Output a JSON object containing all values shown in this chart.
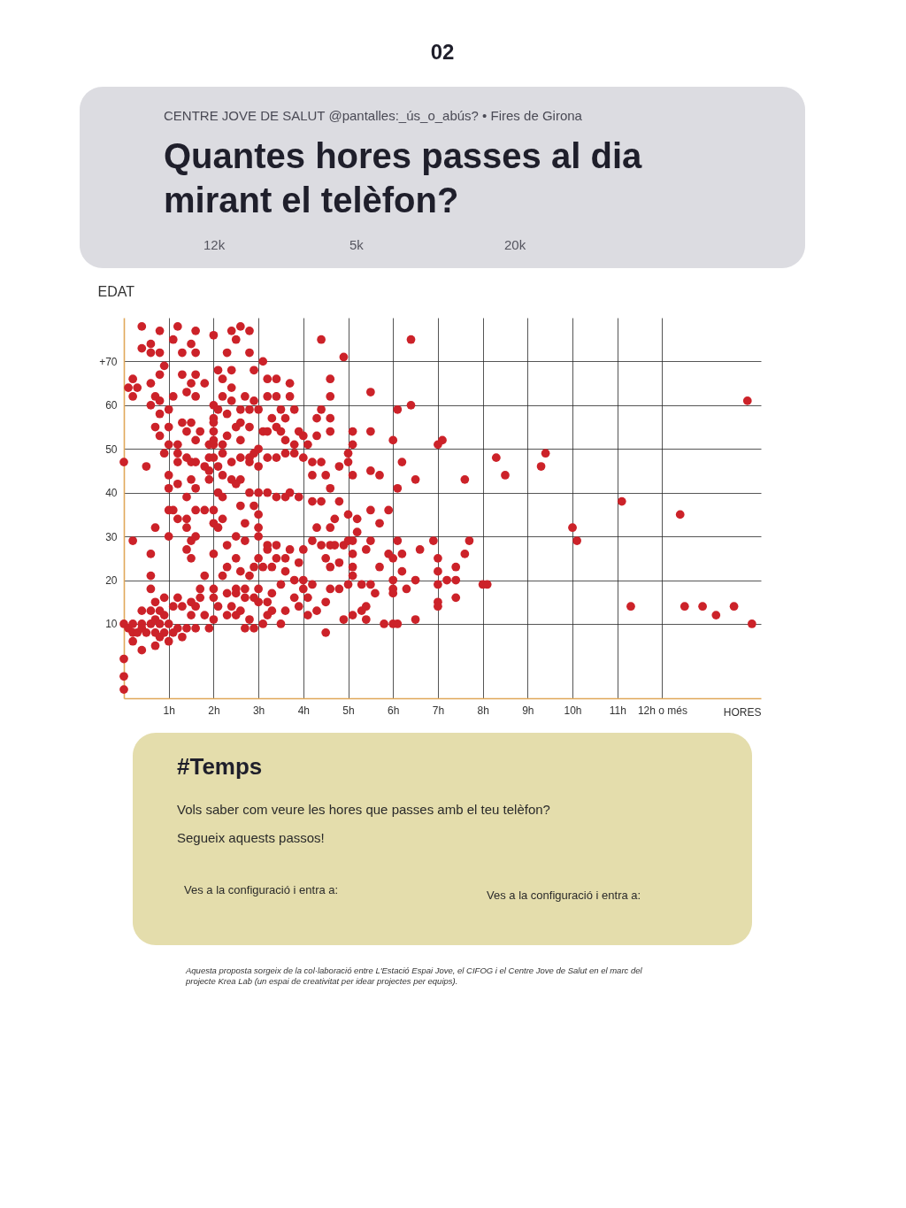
{
  "chart_data": {
    "type": "scatter",
    "title": "Quantes hores passes al dia mirant el telèfon?",
    "subtitle": "CENTRE JOVE DE SALUT @pantalles:_ús_o_abús? • Fires de Girona",
    "xlabel": "HORES",
    "ylabel": "EDAT",
    "series": [
      {
        "color": "#cc2229",
        "x": [
          13.9,
          7.1,
          7.0,
          8.3,
          8.5,
          9.4,
          9.3,
          7.6,
          11.1,
          12.4,
          10.0,
          10.1,
          6.9,
          7.7,
          7.6,
          7.0,
          7.4,
          7.0,
          7.2,
          7.4,
          7.0,
          8.0,
          8.1,
          7.4,
          7.0,
          7.0,
          11.3,
          12.5,
          12.9,
          13.2,
          13.6,
          14.0,
          0.0,
          0.1,
          0.2,
          0.2,
          0.3,
          0.4,
          0.4,
          0.5,
          0.6,
          0.7,
          0.7,
          0.8,
          0.9,
          0.9,
          1.0,
          1.1,
          1.2,
          1.3,
          0.2,
          0.4,
          0.7,
          0.8,
          1.0,
          0.4,
          0.6,
          0.8,
          1.1,
          1.3,
          0.7,
          0.9,
          0.6,
          0.6,
          0.6,
          0.7,
          0.2,
          0.0,
          0.0,
          0.0,
          1.0,
          1.1,
          1.2,
          1.4,
          1.6,
          1.8,
          2.0,
          1.0,
          1.4,
          1.5,
          1.6,
          1.4,
          1.5,
          1.8,
          2.2,
          2.0,
          2.0,
          2.1,
          2.2,
          2.3,
          2.3,
          2.6,
          2.7,
          2.5,
          2.7,
          2.5,
          2.6,
          2.8,
          2.9,
          3.0,
          3.0,
          3.0,
          3.2,
          3.4,
          3.0,
          3.2,
          3.4,
          2.9,
          3.1,
          3.3,
          3.6,
          3.8,
          4.0,
          3.5,
          3.7,
          3.9,
          3.6,
          4.0,
          4.2,
          4.4,
          4.6,
          4.7,
          4.9,
          5.0,
          5.1,
          4.3,
          4.6,
          4.7,
          5.0,
          5.2,
          5.5,
          5.9,
          5.7,
          5.2,
          5.5,
          5.4,
          5.1,
          5.7,
          5.1,
          5.1,
          4.8,
          4.5,
          4.6,
          5.9,
          6.2,
          6.6,
          6.0,
          6.2,
          6.1,
          6.5,
          6.0,
          6.0,
          6.0,
          6.3,
          5.5,
          5.3,
          5.6,
          5.0,
          4.8,
          4.6,
          4.2,
          4.0,
          4.1,
          4.5,
          4.3,
          3.9,
          4.1,
          3.8,
          3.6,
          3.3,
          3.2,
          3.1,
          3.5,
          3.0,
          2.9,
          3.0,
          3.3,
          3.2,
          2.7,
          2.7,
          2.8,
          2.7,
          2.9,
          2.4,
          2.5,
          2.6,
          2.3,
          2.5,
          2.5,
          2.3,
          2.0,
          2.0,
          2.1,
          2.0,
          1.8,
          1.9,
          1.7,
          1.7,
          1.6,
          1.5,
          1.5,
          1.4,
          1.6,
          1.2,
          6.0,
          6.1,
          5.8,
          6.5,
          5.4,
          5.3,
          5.1,
          4.9,
          4.5,
          5.4,
          0.4,
          0.8,
          0.6,
          0.4,
          0.6,
          0.8,
          1.2,
          1.1,
          1.5,
          1.6,
          1.3,
          1.6,
          2.0,
          2.4,
          2.6,
          2.8,
          2.5,
          2.3,
          2.8,
          3.1,
          4.4,
          4.9,
          6.4,
          0.9,
          0.8,
          0.2,
          0.1,
          0.3,
          0.2,
          0.6,
          0.7,
          0.6,
          0.8,
          1.0,
          0.8,
          1.1,
          1.3,
          1.6,
          1.5,
          1.4,
          1.6,
          1.8,
          2.1,
          2.4,
          2.2,
          2.4,
          2.2,
          2.4,
          2.7,
          2.9,
          2.9,
          2.0,
          3.2,
          3.4,
          3.7,
          3.2,
          3.4,
          3.7,
          4.6,
          4.6,
          5.5,
          6.1,
          6.4,
          0.7,
          1.0,
          0.8,
          1.0,
          0.9,
          0.5,
          0.0,
          1.3,
          1.5,
          1.4,
          1.7,
          1.6,
          1.2,
          1.2,
          1.4,
          1.6,
          1.2,
          1.0,
          1.0,
          1.2,
          1.4,
          1.9,
          2.0,
          2.2,
          2.0,
          2.0,
          2.0,
          2.0,
          2.1,
          2.3,
          2.6,
          2.8,
          3.0,
          2.6,
          2.8,
          2.5,
          2.3,
          2.6,
          1.9,
          2.0,
          2.2,
          2.4,
          2.6,
          2.8,
          2.9,
          3.0,
          1.5,
          1.8,
          1.9,
          2.1,
          2.2,
          2.4,
          2.6,
          2.8,
          3.0,
          3.2,
          3.4,
          3.6,
          3.8,
          4.0,
          1.5,
          1.6,
          1.9,
          2.1,
          2.2,
          2.5,
          2.8,
          3.0,
          3.2,
          3.4,
          3.6,
          3.7,
          3.9,
          4.2,
          4.4,
          4.8,
          3.1,
          3.2,
          3.4,
          3.5,
          3.6,
          3.8,
          3.9,
          4.0,
          4.1,
          3.3,
          3.5,
          3.6,
          3.8,
          4.3,
          4.4,
          4.6,
          4.3,
          4.6,
          4.2,
          4.4,
          4.5,
          4.2,
          4.6,
          4.8,
          5.0,
          5.0,
          5.1,
          5.1,
          5.1,
          5.5,
          5.5,
          5.7,
          6.0,
          6.2,
          6.1,
          6.5
        ],
        "values": [
          61,
          52,
          51,
          48,
          44,
          49,
          46,
          43,
          38,
          35,
          32,
          29,
          29,
          29,
          26,
          25,
          23,
          22,
          20,
          20,
          19,
          19,
          19,
          16,
          15,
          14,
          14,
          14,
          14,
          12,
          14,
          10,
          10,
          9,
          8,
          10,
          8,
          10,
          9,
          8,
          10,
          8,
          11,
          10,
          8,
          12,
          10,
          8,
          9,
          7,
          6,
          4,
          5,
          7,
          6,
          13,
          13,
          13,
          14,
          14,
          15,
          16,
          18,
          21,
          26,
          32,
          29,
          2,
          -2,
          -5,
          36,
          36,
          34,
          34,
          36,
          36,
          36,
          30,
          32,
          29,
          30,
          27,
          25,
          21,
          21,
          26,
          33,
          32,
          34,
          28,
          23,
          37,
          33,
          30,
          29,
          25,
          22,
          21,
          37,
          35,
          32,
          30,
          28,
          28,
          25,
          27,
          25,
          23,
          23,
          23,
          22,
          20,
          20,
          19,
          27,
          24,
          25,
          27,
          29,
          28,
          28,
          28,
          28,
          29,
          29,
          32,
          32,
          34,
          35,
          34,
          36,
          36,
          33,
          31,
          29,
          27,
          26,
          23,
          23,
          21,
          24,
          25,
          23,
          26,
          26,
          27,
          25,
          22,
          29,
          20,
          20,
          18,
          17,
          18,
          19,
          19,
          17,
          19,
          18,
          18,
          19,
          18,
          16,
          15,
          13,
          14,
          12,
          16,
          13,
          13,
          12,
          10,
          10,
          18,
          16,
          15,
          17,
          15,
          18,
          16,
          11,
          9,
          9,
          14,
          12,
          13,
          12,
          17,
          18,
          17,
          18,
          16,
          14,
          11,
          12,
          9,
          18,
          16,
          14,
          15,
          12,
          9,
          9,
          16,
          10,
          10,
          10,
          11,
          11,
          13,
          12,
          11,
          8,
          14,
          78,
          77,
          74,
          73,
          72,
          72,
          78,
          75,
          74,
          77,
          72,
          72,
          76,
          77,
          78,
          77,
          75,
          72,
          72,
          70,
          75,
          71,
          75,
          69,
          67,
          66,
          64,
          64,
          62,
          65,
          62,
          60,
          61,
          59,
          58,
          62,
          67,
          67,
          65,
          63,
          62,
          65,
          68,
          68,
          66,
          64,
          62,
          61,
          62,
          68,
          61,
          60,
          66,
          66,
          65,
          62,
          62,
          62,
          66,
          62,
          63,
          59,
          60,
          55,
          55,
          53,
          51,
          49,
          46,
          47,
          56,
          56,
          54,
          54,
          52,
          51,
          49,
          48,
          47,
          47,
          44,
          41,
          42,
          39,
          51,
          51,
          51,
          56,
          54,
          52,
          57,
          59,
          58,
          59,
          59,
          59,
          56,
          55,
          55,
          53,
          52,
          48,
          48,
          49,
          47,
          48,
          48,
          49,
          50,
          47,
          46,
          45,
          46,
          44,
          43,
          43,
          47,
          46,
          48,
          48,
          49,
          49,
          48,
          43,
          41,
          43,
          40,
          39,
          42,
          40,
          40,
          40,
          39,
          39,
          40,
          39,
          38,
          38,
          38,
          54,
          54,
          55,
          54,
          52,
          51,
          54,
          53,
          51,
          57,
          59,
          57,
          59,
          57,
          59,
          57,
          53,
          54,
          47,
          47,
          44,
          44,
          41,
          46,
          47,
          49,
          44,
          51,
          54,
          54,
          45,
          44,
          52,
          47,
          41,
          43
        ]
      }
    ],
    "xlim": [
      0,
      14.2
    ],
    "xticks": [
      {
        "value": 1,
        "label": "1h"
      },
      {
        "value": 2,
        "label": "2h"
      },
      {
        "value": 3,
        "label": "3h"
      },
      {
        "value": 4,
        "label": "4h"
      },
      {
        "value": 5,
        "label": "5h"
      },
      {
        "value": 6,
        "label": "6h"
      },
      {
        "value": 7,
        "label": "7h"
      },
      {
        "value": 8,
        "label": "8h"
      },
      {
        "value": 9,
        "label": "9h"
      },
      {
        "value": 10,
        "label": "10h"
      },
      {
        "value": 11,
        "label": "11h"
      },
      {
        "value": 12,
        "label": "12h o més"
      }
    ],
    "ylim": [
      -7,
      80
    ],
    "yticks": [
      10,
      20,
      30,
      40,
      50,
      60,
      {
        "value": 70,
        "label": "+70"
      }
    ],
    "grid": true,
    "marker": "circle",
    "annotations": [
      "02",
      "12k",
      "5k",
      "20k",
      "#Temps",
      "Vols saber com veure les hores que passes amb el teu telèfon?",
      "Segueix aquests passos!",
      "Ves a la configuració i entra a:",
      "Ves a la configuració i entra a:",
      "Aquesta proposta sorgeix de la col·laboració entre L'Estació Espai Jove, el CIFOG i el Centre Jove de Salut en el marc del projecte Krea Lab (un espai de creativitat per idear projectes per equips)."
    ]
  }
}
